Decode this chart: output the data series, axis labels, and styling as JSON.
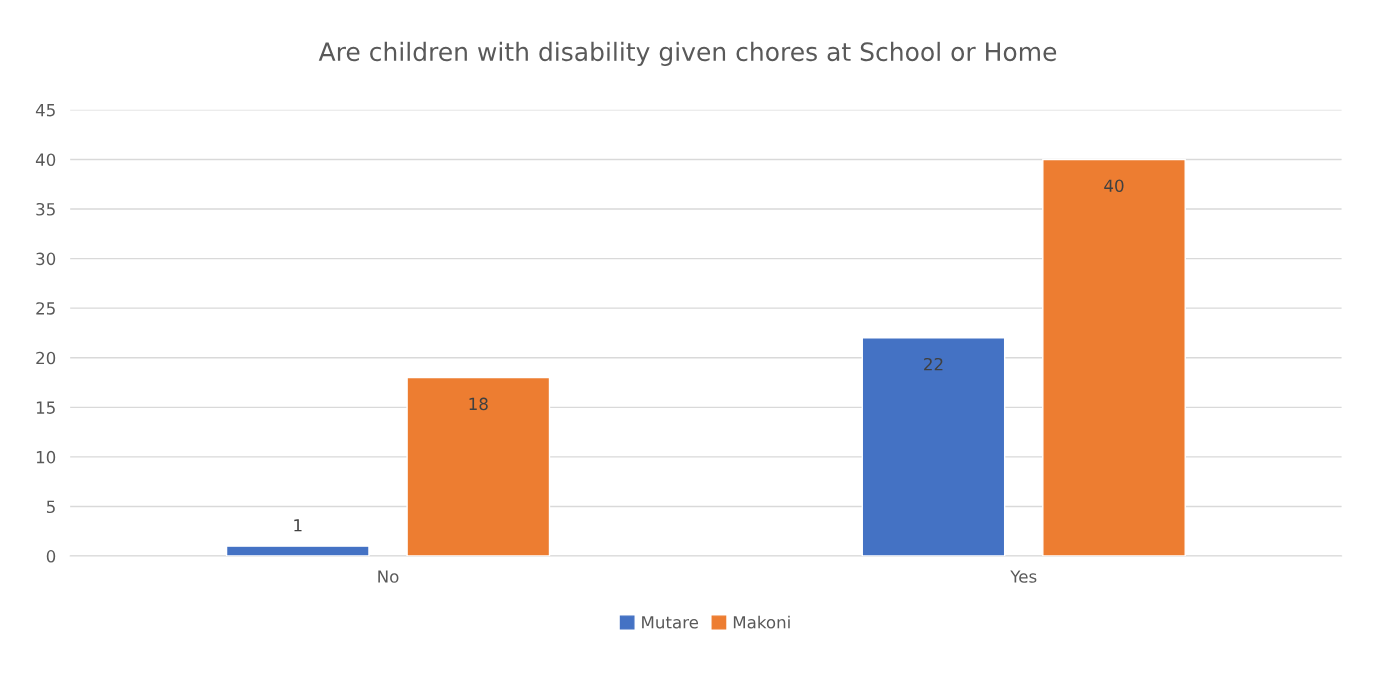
{
  "chart_data": {
    "type": "bar",
    "title": "Are children with disability given chores at School or Home",
    "categories": [
      "No",
      "Yes"
    ],
    "series": [
      {
        "name": "Mutare",
        "color": "#4472c4",
        "values": [
          1,
          22
        ]
      },
      {
        "name": "Makoni",
        "color": "#ed7d31",
        "values": [
          18,
          40
        ]
      }
    ],
    "ylim": [
      0,
      45
    ],
    "yticks": [
      0,
      5,
      10,
      15,
      20,
      25,
      30,
      35,
      40,
      45
    ],
    "grid": "y",
    "legend": "bottom",
    "data_labels": true
  }
}
